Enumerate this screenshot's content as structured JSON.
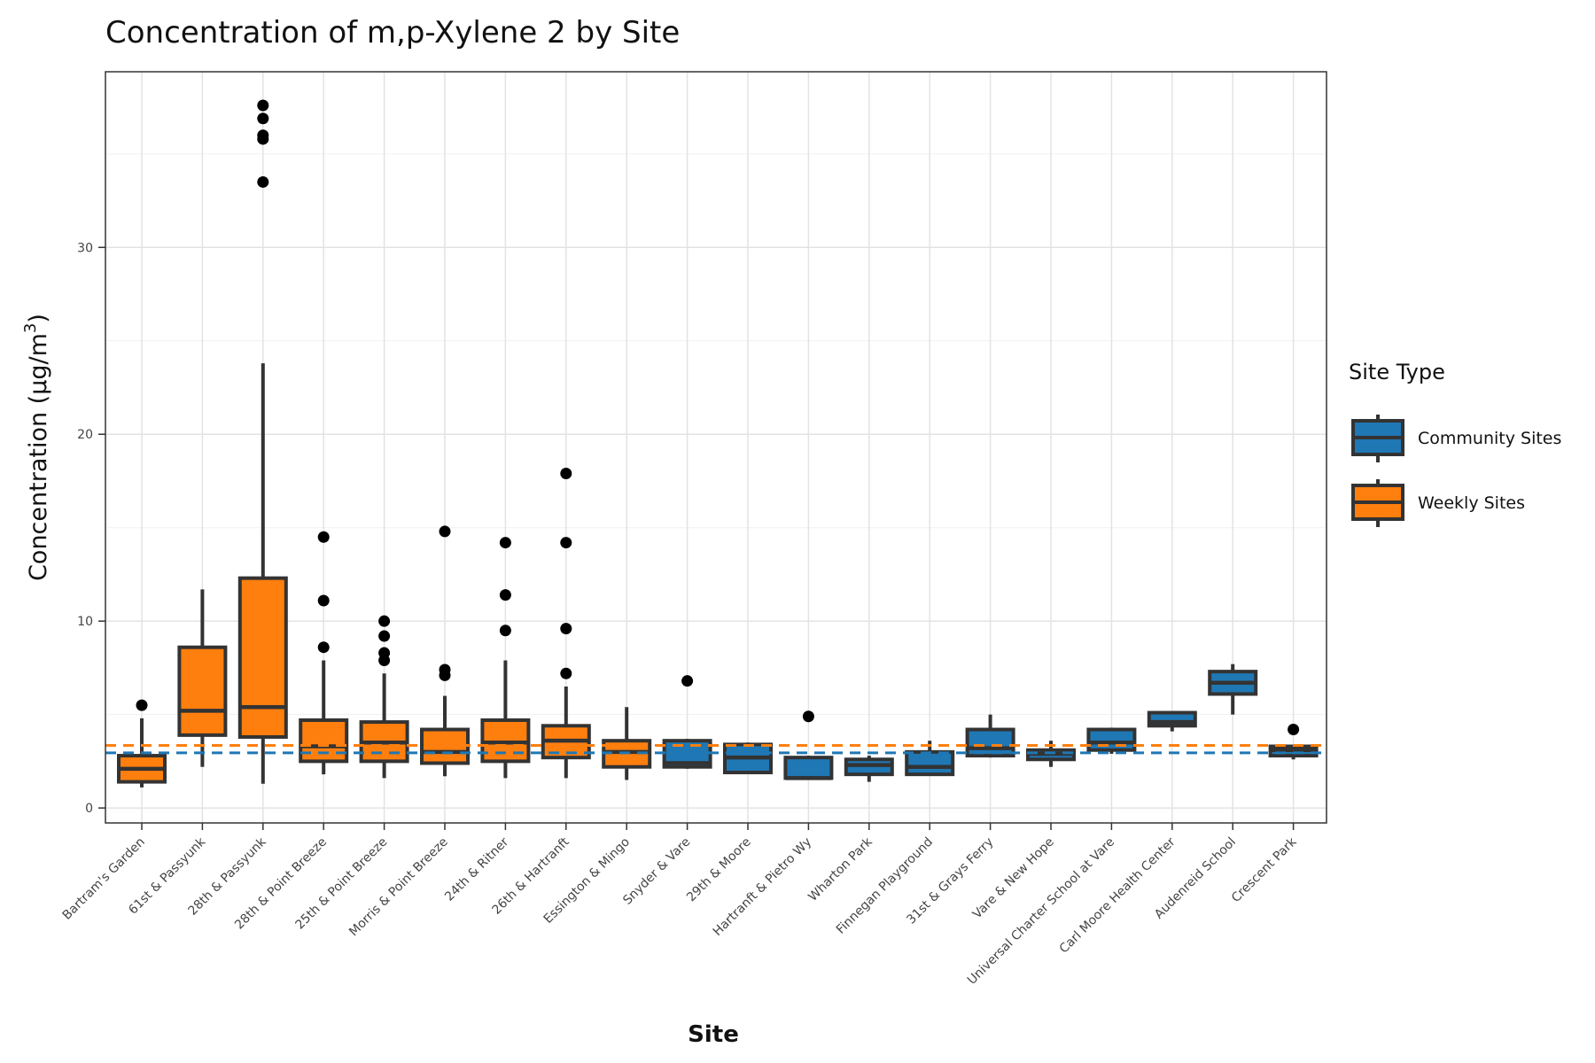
{
  "chart_data": {
    "type": "boxplot",
    "title": "Concentration of m,p-Xylene 2 by Site",
    "xlabel": "Site",
    "ylabel": "Concentration (µg/m",
    "ylabel_superscript": "3",
    "ylabel_close": ")",
    "ylim": [
      -0.8,
      39.4
    ],
    "yticks": [
      0,
      10,
      20,
      30
    ],
    "grid": true,
    "legend": {
      "title": "Site Type",
      "position": "right",
      "entries": [
        {
          "label": "Community Sites",
          "color": "#1f77b4"
        },
        {
          "label": "Weekly Sites",
          "color": "#ff7f0e"
        }
      ]
    },
    "reference_lines": [
      {
        "series": "Weekly Sites",
        "value": 3.35,
        "color": "#ff7f0e",
        "style": "dashed"
      },
      {
        "series": "Community Sites",
        "value": 2.95,
        "color": "#1f77b4",
        "style": "dashed"
      }
    ],
    "box_outline_color": "#333333",
    "sites": [
      {
        "name": "Bartram's Garden",
        "type": "Weekly Sites",
        "whisker_low": 1.1,
        "q1": 1.4,
        "median": 2.1,
        "q3": 2.8,
        "whisker_high": 4.8,
        "outliers": [
          5.5
        ]
      },
      {
        "name": "61st & Passyunk",
        "type": "Weekly Sites",
        "whisker_low": 2.2,
        "q1": 3.9,
        "median": 5.2,
        "q3": 8.6,
        "whisker_high": 11.7,
        "outliers": []
      },
      {
        "name": "28th & Passyunk",
        "type": "Weekly Sites",
        "whisker_low": 1.3,
        "q1": 3.8,
        "median": 5.4,
        "q3": 12.3,
        "whisker_high": 23.8,
        "outliers": [
          33.5,
          35.8,
          36.0,
          36.9,
          37.6
        ]
      },
      {
        "name": "28th & Point Breeze",
        "type": "Weekly Sites",
        "whisker_low": 1.8,
        "q1": 2.5,
        "median": 3.3,
        "q3": 4.7,
        "whisker_high": 7.9,
        "outliers": [
          8.6,
          11.1,
          14.5
        ]
      },
      {
        "name": "25th & Point Breeze",
        "type": "Weekly Sites",
        "whisker_low": 1.6,
        "q1": 2.5,
        "median": 3.5,
        "q3": 4.6,
        "whisker_high": 7.2,
        "outliers": [
          7.9,
          8.3,
          9.2,
          10.0
        ]
      },
      {
        "name": "Morris & Point Breeze",
        "type": "Weekly Sites",
        "whisker_low": 1.7,
        "q1": 2.4,
        "median": 3.0,
        "q3": 4.2,
        "whisker_high": 6.0,
        "outliers": [
          7.1,
          7.4,
          14.8
        ]
      },
      {
        "name": "24th & Ritner",
        "type": "Weekly Sites",
        "whisker_low": 1.6,
        "q1": 2.5,
        "median": 3.5,
        "q3": 4.7,
        "whisker_high": 7.9,
        "outliers": [
          9.5,
          11.4,
          14.2
        ]
      },
      {
        "name": "26th & Hartranft",
        "type": "Weekly Sites",
        "whisker_low": 1.6,
        "q1": 2.7,
        "median": 3.6,
        "q3": 4.4,
        "whisker_high": 6.5,
        "outliers": [
          7.2,
          9.6,
          14.2,
          17.9
        ]
      },
      {
        "name": "Essington & Mingo",
        "type": "Weekly Sites",
        "whisker_low": 1.5,
        "q1": 2.2,
        "median": 3.0,
        "q3": 3.6,
        "whisker_high": 5.4,
        "outliers": []
      },
      {
        "name": "Snyder & Vare",
        "type": "Community Sites",
        "whisker_low": 2.1,
        "q1": 2.2,
        "median": 2.4,
        "q3": 3.6,
        "whisker_high": 3.7,
        "outliers": [
          6.8
        ]
      },
      {
        "name": "29th & Moore",
        "type": "Community Sites",
        "whisker_low": 1.9,
        "q1": 1.9,
        "median": 2.7,
        "q3": 3.4,
        "whisker_high": 3.5,
        "outliers": []
      },
      {
        "name": "Hartranft & Pietro Wy",
        "type": "Community Sites",
        "whisker_low": 1.6,
        "q1": 1.6,
        "median": 1.6,
        "q3": 2.7,
        "whisker_high": 2.8,
        "outliers": [
          4.9
        ]
      },
      {
        "name": "Wharton Park",
        "type": "Community Sites",
        "whisker_low": 1.4,
        "q1": 1.8,
        "median": 2.3,
        "q3": 2.6,
        "whisker_high": 2.8,
        "outliers": []
      },
      {
        "name": "Finnegan Playground",
        "type": "Community Sites",
        "whisker_low": 1.8,
        "q1": 1.8,
        "median": 2.2,
        "q3": 3.0,
        "whisker_high": 3.6,
        "outliers": []
      },
      {
        "name": "31st & Grays Ferry",
        "type": "Community Sites",
        "whisker_low": 2.7,
        "q1": 2.8,
        "median": 3.2,
        "q3": 4.2,
        "whisker_high": 5.0,
        "outliers": []
      },
      {
        "name": "Vare & New Hope",
        "type": "Community Sites",
        "whisker_low": 2.2,
        "q1": 2.6,
        "median": 2.9,
        "q3": 3.1,
        "whisker_high": 3.6,
        "outliers": []
      },
      {
        "name": "Universal Charter School at Vare",
        "type": "Community Sites",
        "whisker_low": 2.9,
        "q1": 3.1,
        "median": 3.5,
        "q3": 4.2,
        "whisker_high": 4.3,
        "outliers": []
      },
      {
        "name": "Carl Moore Health Center",
        "type": "Community Sites",
        "whisker_low": 4.1,
        "q1": 4.4,
        "median": 4.6,
        "q3": 5.1,
        "whisker_high": 5.1,
        "outliers": []
      },
      {
        "name": "Audenreid School",
        "type": "Community Sites",
        "whisker_low": 5.0,
        "q1": 6.1,
        "median": 6.7,
        "q3": 7.3,
        "whisker_high": 7.7,
        "outliers": []
      },
      {
        "name": "Crescent Park",
        "type": "Community Sites",
        "whisker_low": 2.6,
        "q1": 2.8,
        "median": 3.1,
        "q3": 3.3,
        "whisker_high": 3.3,
        "outliers": [
          4.2
        ]
      }
    ]
  }
}
